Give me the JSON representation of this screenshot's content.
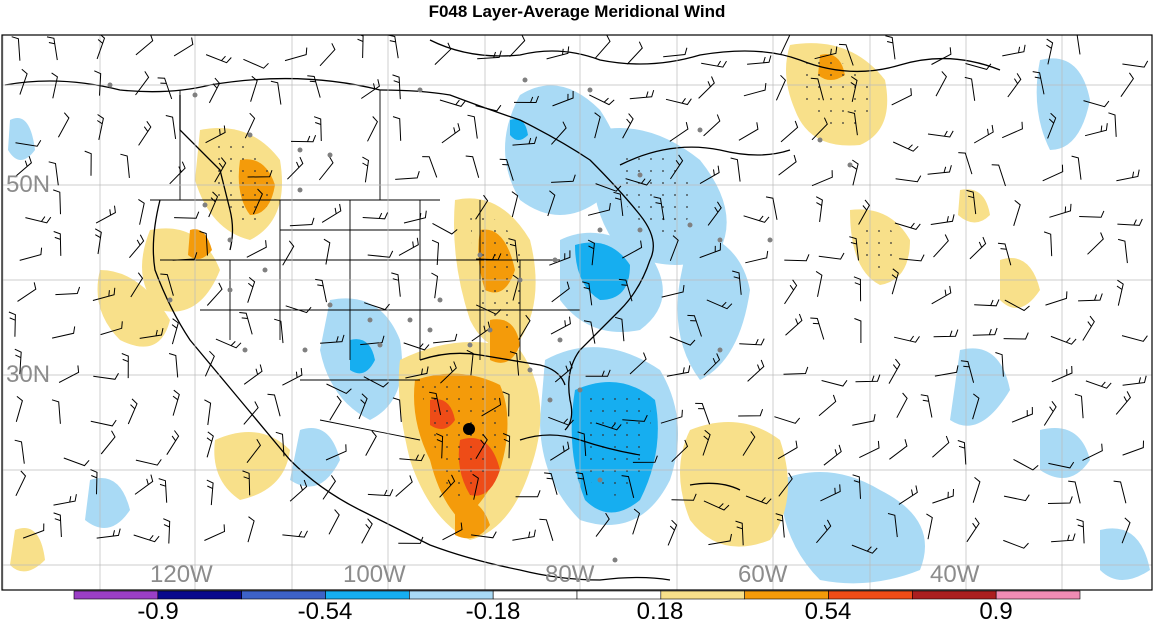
{
  "title": "F048 Layer-Average Meridional Wind",
  "lat_labels": [
    "50N",
    "30N"
  ],
  "lon_labels": [
    "120W",
    "100W",
    "80W",
    "60W",
    "40W"
  ],
  "colorbar": {
    "colors": [
      "#9b3fc6",
      "#0a0a8c",
      "#3d62c8",
      "#16aef0",
      "#a9daf5",
      "#ffffff",
      "#ffffff",
      "#f8e08a",
      "#f49b0a",
      "#ee4c17",
      "#ab1f1f",
      "#f08cb4"
    ],
    "labels": [
      "-0.9",
      "-0.54",
      "-0.18",
      "0.18",
      "0.54",
      "0.9"
    ]
  },
  "marker_icon": "storm-center-dot",
  "wind_icon": "wind-barb-icon",
  "station_icon": "station-dot-icon"
}
